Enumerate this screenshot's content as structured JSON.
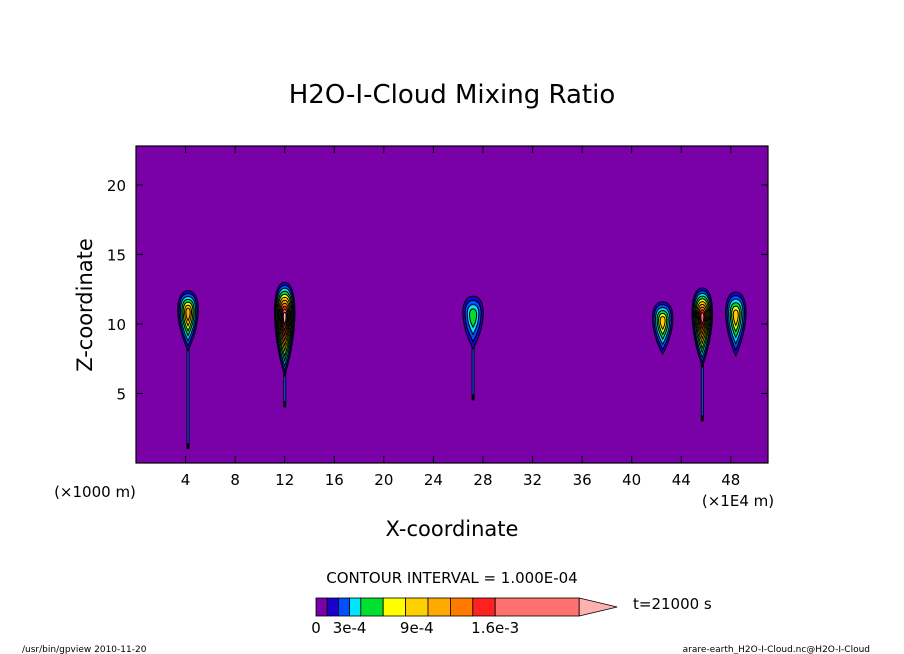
{
  "chart_data": {
    "type": "heatmap",
    "title": "H2O-I-Cloud Mixing Ratio",
    "xlabel": "X-coordinate",
    "ylabel": "Z-coordinate",
    "x_units_left": "(×1000 m)",
    "x_units_right": "(×1E4 m)",
    "xlim": [
      0,
      51
    ],
    "ylim": [
      0,
      22.8
    ],
    "x_ticks": [
      4,
      8,
      12,
      16,
      20,
      24,
      28,
      32,
      36,
      40,
      44,
      48
    ],
    "y_ticks": [
      5,
      10,
      15,
      20
    ],
    "contour_interval_label": "CONTOUR INTERVAL = 1.000E-04",
    "time_label": "t=21000 s",
    "colorbar": {
      "tick_labels": [
        "0",
        "3e-4",
        "9e-4",
        "1.6e-3"
      ],
      "tick_values": [
        0,
        0.0003,
        0.0009,
        0.0016
      ],
      "levels": [
        0,
        0.0001,
        0.0002,
        0.0003,
        0.0004,
        0.0005,
        0.0006,
        0.0007,
        0.0008,
        0.0009,
        0.001,
        0.0011,
        0.0012,
        0.0013,
        0.0014,
        0.0015,
        0.0016
      ],
      "colors": [
        "#7a00a8",
        "#1a00cc",
        "#0050ff",
        "#00e6ff",
        "#00e030",
        "#ffff00",
        "#ffd000",
        "#ffaa00",
        "#ff7a00",
        "#ff2020",
        "#ff7070",
        "#ffb0b0"
      ],
      "extends_max": true
    },
    "background_color": "#7a00a8",
    "cloud_features": [
      {
        "x": 4.2,
        "z_top": 12.4,
        "z_center": 10.8,
        "z_bottom": 1.0,
        "max_level": 0.0007
      },
      {
        "x": 12.0,
        "z_top": 13.0,
        "z_center": 10.5,
        "z_bottom": 4.0,
        "max_level": 0.0011
      },
      {
        "x": 27.2,
        "z_top": 12.0,
        "z_center": 10.6,
        "z_bottom": 4.5,
        "max_level": 0.0004
      },
      {
        "x": 42.5,
        "z_top": 11.6,
        "z_center": 10.2,
        "z_bottom": 8.0,
        "max_level": 0.0006
      },
      {
        "x": 45.7,
        "z_top": 12.6,
        "z_center": 10.5,
        "z_bottom": 3.0,
        "max_level": 0.001
      },
      {
        "x": 48.4,
        "z_top": 12.3,
        "z_center": 10.6,
        "z_bottom": 8.0,
        "max_level": 0.0006
      }
    ]
  },
  "footer": {
    "left": "/usr/bin/gpview  2010-11-20",
    "right": "arare-earth_H2O-I-Cloud.nc@H2O-I-Cloud"
  }
}
